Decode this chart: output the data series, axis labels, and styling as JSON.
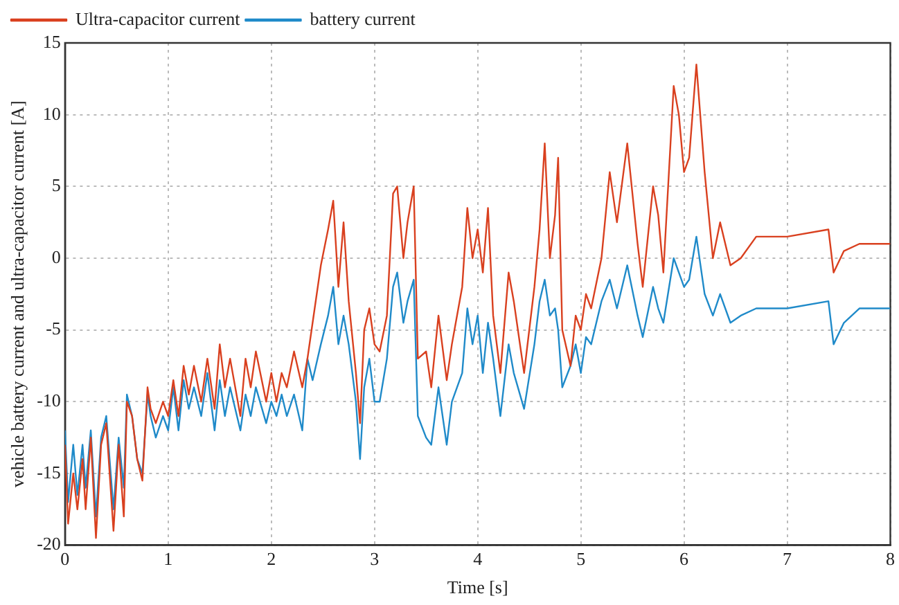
{
  "chart_data": {
    "type": "line",
    "xlabel": "Time [s]",
    "ylabel": "vehicle battery current and ultra-capacitor current [A]",
    "x": [
      0,
      0.03,
      0.08,
      0.12,
      0.17,
      0.2,
      0.25,
      0.3,
      0.35,
      0.4,
      0.47,
      0.52,
      0.57,
      0.6,
      0.65,
      0.7,
      0.75,
      0.8,
      0.83,
      0.88,
      0.95,
      1.0,
      1.05,
      1.1,
      1.15,
      1.2,
      1.25,
      1.32,
      1.38,
      1.45,
      1.5,
      1.55,
      1.6,
      1.7,
      1.75,
      1.8,
      1.85,
      1.95,
      2.0,
      2.05,
      2.1,
      2.15,
      2.22,
      2.3,
      2.35,
      2.4,
      2.48,
      2.55,
      2.6,
      2.65,
      2.7,
      2.75,
      2.82,
      2.86,
      2.9,
      2.95,
      3.0,
      3.05,
      3.12,
      3.18,
      3.22,
      3.28,
      3.32,
      3.38,
      3.42,
      3.5,
      3.55,
      3.62,
      3.7,
      3.75,
      3.85,
      3.9,
      3.95,
      4.0,
      4.05,
      4.1,
      4.15,
      4.22,
      4.3,
      4.35,
      4.45,
      4.55,
      4.6,
      4.65,
      4.7,
      4.75,
      4.78,
      4.82,
      4.9,
      4.95,
      5.0,
      5.05,
      5.1,
      5.2,
      5.28,
      5.35,
      5.45,
      5.55,
      5.6,
      5.7,
      5.75,
      5.8,
      5.9,
      5.95,
      6.0,
      6.05,
      6.12,
      6.2,
      6.28,
      6.35,
      6.45,
      6.55,
      6.7,
      7.0,
      7.4,
      7.45,
      7.55,
      7.7,
      8
    ],
    "series": [
      {
        "name": "Ultra-capacitor current",
        "color": "#d9401f",
        "values": [
          -13,
          -18.5,
          -15,
          -17.5,
          -14,
          -17.5,
          -12.5,
          -19.5,
          -13,
          -11.5,
          -19,
          -13,
          -18,
          -10,
          -11,
          -14,
          -15.5,
          -9,
          -10.5,
          -11.5,
          -10,
          -11,
          -8.5,
          -11,
          -7.5,
          -9.5,
          -7.5,
          -10,
          -7,
          -10.5,
          -6,
          -9,
          -7,
          -11,
          -7,
          -9,
          -6.5,
          -10,
          -8,
          -10,
          -8,
          -9,
          -6.5,
          -9,
          -7,
          -4.5,
          -0.5,
          2,
          4,
          -2,
          2.5,
          -3,
          -8,
          -11.5,
          -5,
          -3.5,
          -6,
          -6.5,
          -4,
          4.5,
          5,
          0,
          2.5,
          5,
          -7,
          -6.5,
          -9,
          -4,
          -8.5,
          -6,
          -2,
          3.5,
          0,
          2,
          -1,
          3.5,
          -4,
          -8,
          -1,
          -3,
          -8,
          -2,
          2,
          8,
          0,
          3,
          7,
          -5,
          -7.5,
          -4,
          -5,
          -2.5,
          -3.5,
          0,
          6,
          2.5,
          8,
          1,
          -2,
          5,
          3,
          -1,
          12,
          10,
          6,
          7,
          13.5,
          6,
          0,
          2.5,
          -0.5,
          0,
          1.5,
          1.5,
          2,
          -1,
          0.5,
          1,
          1
        ]
      },
      {
        "name": "battery current",
        "color": "#1f8ac9",
        "values": [
          -12,
          -17,
          -13,
          -16.5,
          -13,
          -16,
          -12,
          -18,
          -12.5,
          -11,
          -17.5,
          -12.5,
          -16,
          -9.5,
          -11,
          -14,
          -15,
          -9.5,
          -11,
          -12.5,
          -11,
          -12,
          -9,
          -12,
          -8.5,
          -10.5,
          -9,
          -11,
          -8,
          -12,
          -8.5,
          -11,
          -9,
          -12,
          -9.5,
          -11,
          -9,
          -11.5,
          -10,
          -11,
          -9.5,
          -11,
          -9.5,
          -12,
          -7,
          -8.5,
          -6,
          -4,
          -2,
          -6,
          -4,
          -6,
          -10,
          -14,
          -9,
          -7,
          -10,
          -10,
          -7,
          -2,
          -1,
          -4.5,
          -3,
          -1.5,
          -11,
          -12.5,
          -13,
          -9,
          -13,
          -10,
          -8,
          -3.5,
          -6,
          -4,
          -8,
          -4.5,
          -7,
          -11,
          -6,
          -8,
          -10.5,
          -6,
          -3,
          -1.5,
          -4,
          -3.5,
          -5,
          -9,
          -7.5,
          -6,
          -8,
          -5.5,
          -6,
          -3,
          -1.5,
          -3.5,
          -0.5,
          -4,
          -5.5,
          -2,
          -3.5,
          -4.5,
          0,
          -1,
          -2,
          -1.5,
          1.5,
          -2.5,
          -4,
          -2.5,
          -4.5,
          -4,
          -3.5,
          -3.5,
          -3,
          -6,
          -4.5,
          -3.5,
          -3.5
        ]
      }
    ],
    "xlim": [
      0,
      8
    ],
    "xticks": [
      0,
      1,
      2,
      3,
      4,
      5,
      6,
      7,
      8
    ],
    "ylim": [
      -20,
      15
    ],
    "yticks": [
      -20,
      -15,
      -10,
      -5,
      0,
      5,
      10,
      15
    ],
    "grid": true,
    "legend": "top left",
    "marker": "none",
    "line_style": "solid"
  }
}
